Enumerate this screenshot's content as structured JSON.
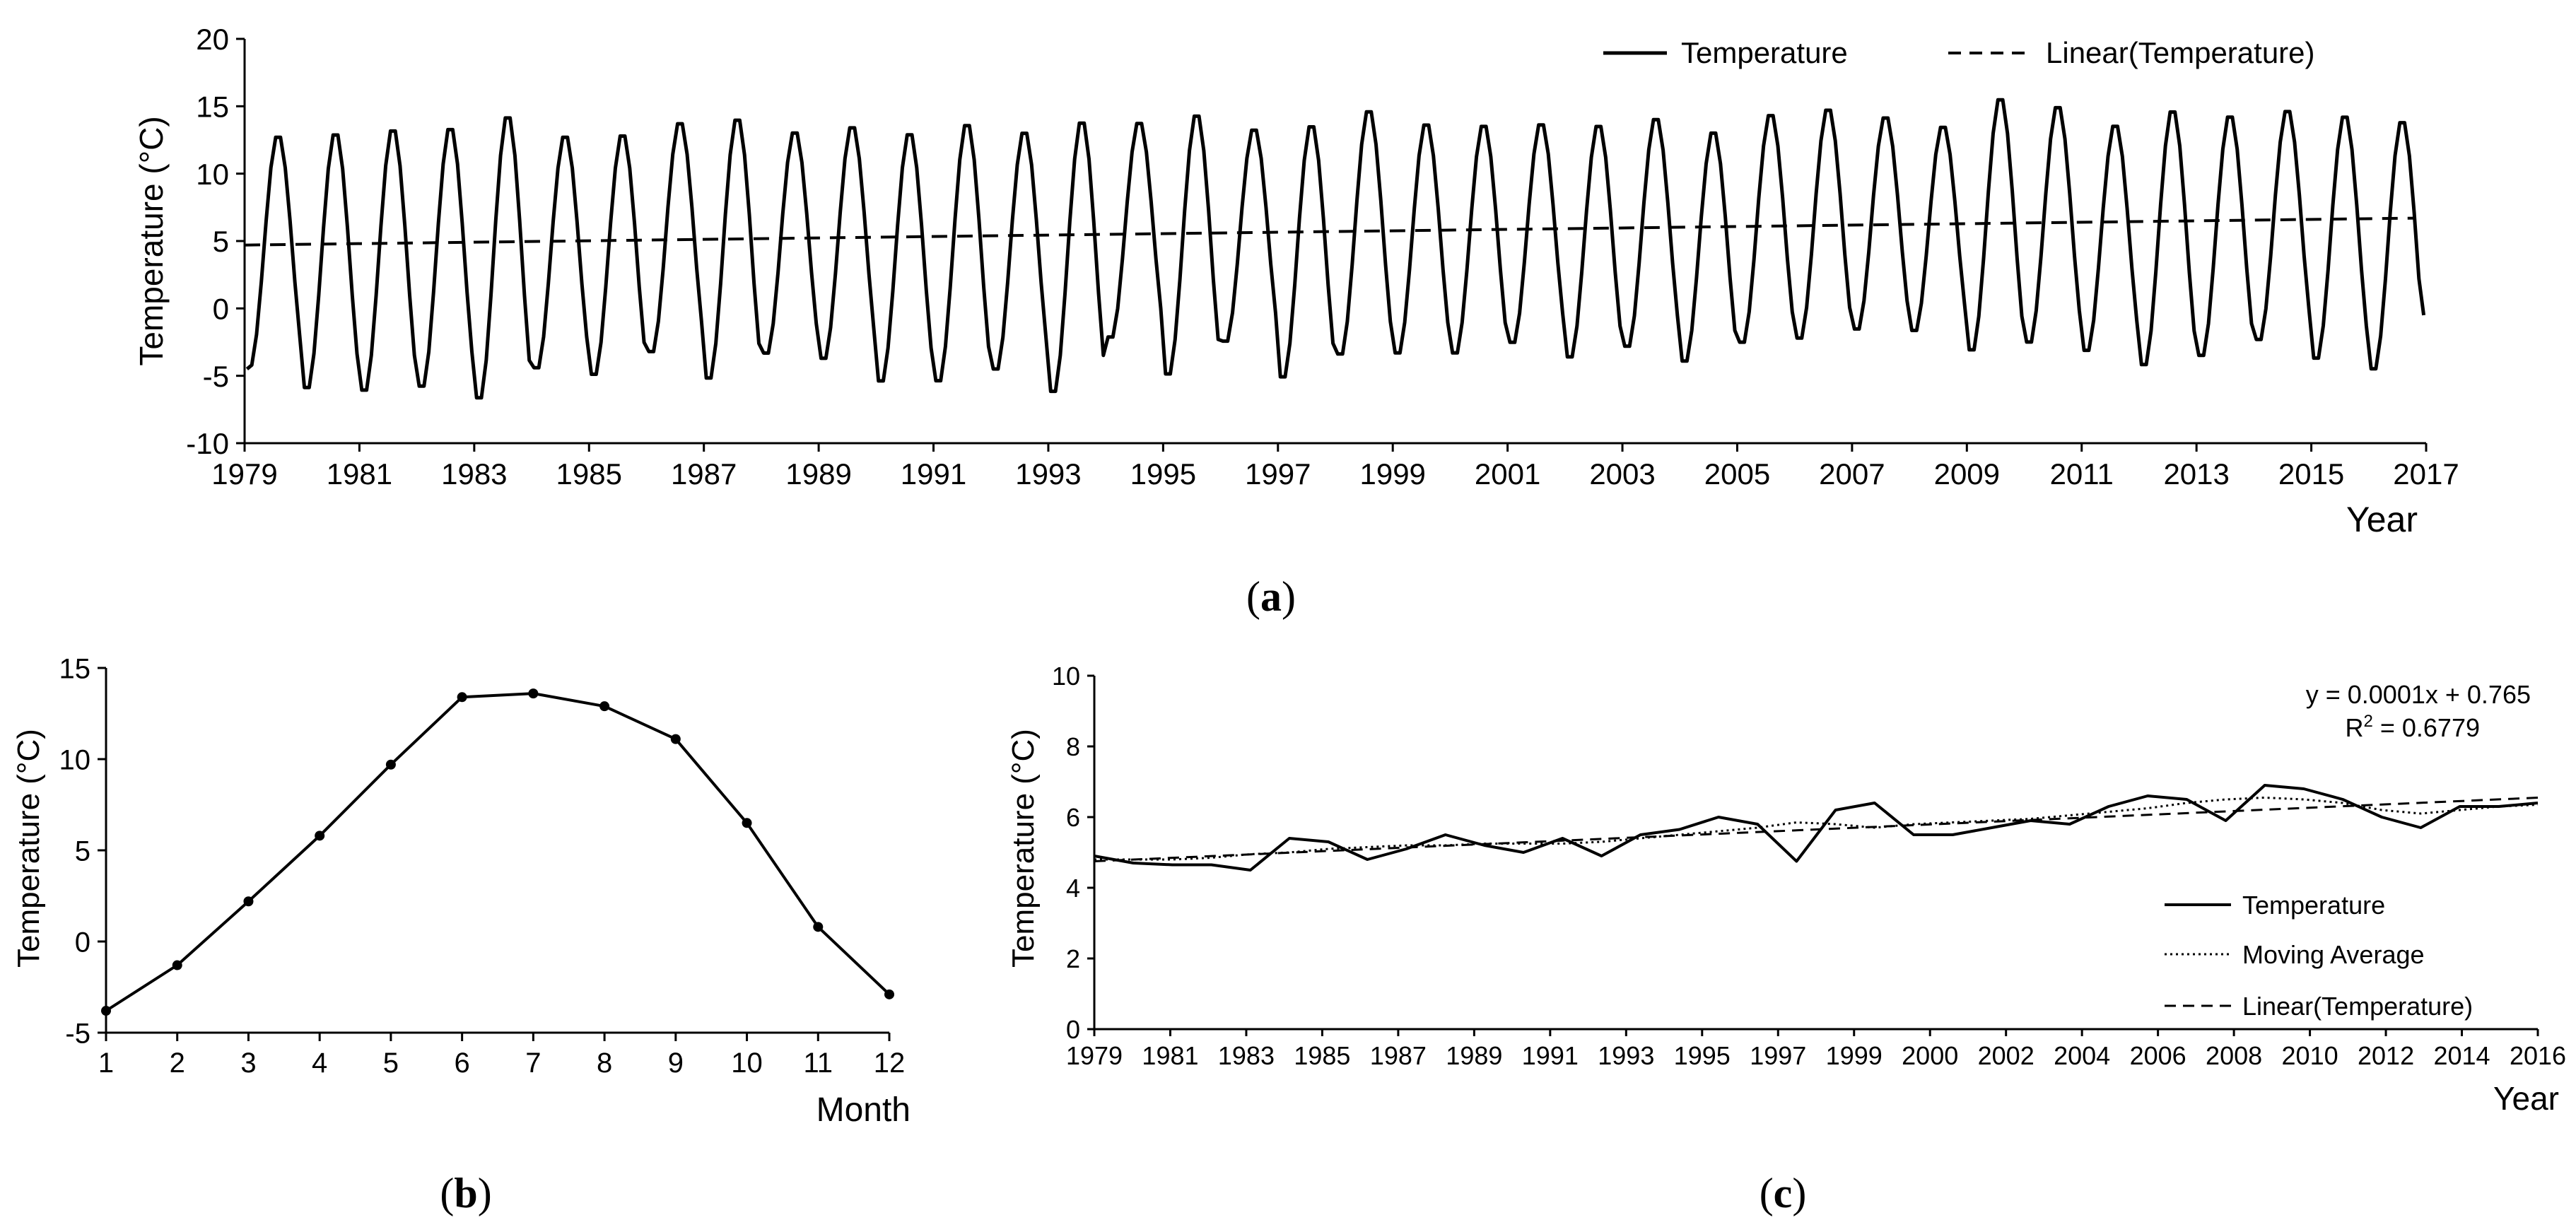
{
  "figure": {
    "panel_labels": {
      "a": {
        "open": "(",
        "letter": "a",
        "close": ")"
      },
      "b": {
        "open": "(",
        "letter": "b",
        "close": ")"
      },
      "c": {
        "open": "(",
        "letter": "c",
        "close": ")"
      }
    }
  },
  "chart_data": [
    {
      "id": "a",
      "type": "line",
      "title": "",
      "xlabel": "Year",
      "ylabel": "Temperature (°C)",
      "xlim": [
        1979,
        2017
      ],
      "ylim": [
        -10,
        20
      ],
      "x_ticks": [
        1979,
        1981,
        1983,
        1985,
        1987,
        1989,
        1991,
        1993,
        1995,
        1997,
        1999,
        2001,
        2003,
        2005,
        2007,
        2009,
        2011,
        2013,
        2015,
        2017
      ],
      "y_ticks": [
        -10,
        -5,
        0,
        5,
        10,
        15,
        20
      ],
      "series": [
        {
          "name": "Temperature",
          "style": "solid",
          "monthly_start": 1979,
          "annual_peaks": [
            13.0,
            13.2,
            13.5,
            13.6,
            14.5,
            13.0,
            13.1,
            14.0,
            14.3,
            13.3,
            13.7,
            13.2,
            13.9,
            13.3,
            14.1,
            14.0,
            14.6,
            13.5,
            13.8,
            14.9,
            13.9,
            13.8,
            13.9,
            13.8,
            14.3,
            13.3,
            14.6,
            15.0,
            14.4,
            13.7,
            15.8,
            15.2,
            13.8,
            14.9,
            14.5,
            14.9,
            14.5,
            14.1
          ],
          "annual_troughs": [
            -4.5,
            -6.2,
            -6.4,
            -6.1,
            -7.0,
            -4.7,
            -5.2,
            -3.5,
            -5.5,
            -3.6,
            -4.0,
            -5.7,
            -5.7,
            -4.8,
            -6.5,
            -2.4,
            -5.2,
            -2.7,
            -5.4,
            -3.7,
            -3.6,
            -3.6,
            -2.8,
            -3.9,
            -3.1,
            -4.2,
            -2.8,
            -2.5,
            -1.8,
            -1.9,
            -3.4,
            -2.8,
            -3.4,
            -4.5,
            -3.8,
            -2.6,
            -4.0,
            -4.8
          ],
          "end_value": -0.5
        },
        {
          "name": "Linear(Temperature)",
          "style": "dashed",
          "x": [
            1979,
            2016.8
          ],
          "y": [
            4.7,
            6.7
          ]
        }
      ],
      "legend": [
        "Temperature",
        "Linear(Temperature)"
      ],
      "legend_position": "top-right"
    },
    {
      "id": "b",
      "type": "line",
      "title": "",
      "xlabel": "Month",
      "ylabel": "Temperature (°C)",
      "xlim": [
        1,
        12
      ],
      "ylim": [
        -5,
        15
      ],
      "x_ticks": [
        1,
        2,
        3,
        4,
        5,
        6,
        7,
        8,
        9,
        10,
        11,
        12
      ],
      "y_ticks": [
        -5,
        0,
        5,
        10,
        15
      ],
      "categories": [
        1,
        2,
        3,
        4,
        5,
        6,
        7,
        8,
        9,
        10,
        11,
        12
      ],
      "values": [
        -3.8,
        -1.3,
        2.2,
        5.8,
        9.7,
        13.4,
        13.6,
        12.9,
        11.1,
        6.5,
        0.8,
        -2.9
      ],
      "markers": true
    },
    {
      "id": "c",
      "type": "line",
      "title": "",
      "xlabel": "Year",
      "ylabel": "Temperature (°C)",
      "xlim": [
        1979,
        2016
      ],
      "ylim": [
        0,
        10
      ],
      "x_ticks": [
        1979,
        1981,
        1983,
        1985,
        1987,
        1989,
        1991,
        1993,
        1995,
        1997,
        1999,
        2000,
        2002,
        2004,
        2006,
        2008,
        2010,
        2012,
        2014,
        2016
      ],
      "y_ticks": [
        0,
        2,
        4,
        6,
        8,
        10
      ],
      "annotation": {
        "equation": "y = 0.0001x + 0.765",
        "r2_prefix": "R",
        "r2_sup": "2",
        "r2_value": " = 0.6779"
      },
      "series": [
        {
          "name": "Temperature",
          "style": "solid",
          "x": [
            1979,
            1980,
            1981,
            1982,
            1983,
            1984,
            1985,
            1986,
            1987,
            1988,
            1989,
            1990,
            1991,
            1992,
            1993,
            1994,
            1995,
            1996,
            1997,
            1998,
            1999,
            2000,
            2001,
            2002,
            2003,
            2004,
            2005,
            2006,
            2007,
            2008,
            2009,
            2010,
            2011,
            2012,
            2013,
            2014,
            2015,
            2016
          ],
          "y": [
            4.9,
            4.7,
            4.65,
            4.65,
            4.5,
            5.4,
            5.3,
            4.8,
            5.1,
            5.5,
            5.2,
            5.0,
            5.4,
            4.9,
            5.5,
            5.65,
            6.0,
            5.8,
            4.75,
            6.2,
            6.4,
            5.5,
            5.5,
            5.7,
            5.9,
            5.8,
            6.3,
            6.6,
            6.5,
            5.9,
            6.9,
            6.8,
            6.5,
            6.0,
            5.7,
            6.3,
            6.3,
            6.4
          ]
        },
        {
          "name": "Moving Average",
          "style": "dotted",
          "x": [
            1979,
            1980,
            1981,
            1982,
            1983,
            1984,
            1985,
            1986,
            1987,
            1988,
            1989,
            1990,
            1991,
            1992,
            1993,
            1994,
            1995,
            1996,
            1997,
            1998,
            1999,
            2000,
            2001,
            2002,
            2003,
            2004,
            2005,
            2006,
            2007,
            2008,
            2009,
            2010,
            2011,
            2012,
            2013,
            2014,
            2015,
            2016
          ],
          "y": [
            4.8,
            4.8,
            4.8,
            4.85,
            4.95,
            5.0,
            5.1,
            5.15,
            5.2,
            5.2,
            5.25,
            5.25,
            5.25,
            5.3,
            5.4,
            5.5,
            5.6,
            5.7,
            5.85,
            5.8,
            5.7,
            5.8,
            5.85,
            5.9,
            5.95,
            6.05,
            6.15,
            6.25,
            6.4,
            6.5,
            6.55,
            6.5,
            6.4,
            6.2,
            6.1,
            6.2,
            6.3,
            6.35
          ]
        },
        {
          "name": "Linear(Temperature)",
          "style": "dashed",
          "x": [
            1979,
            2016
          ],
          "y": [
            4.75,
            6.55
          ]
        }
      ],
      "legend": [
        "Temperature",
        "Moving Average",
        "Linear(Temperature)"
      ],
      "legend_position": "bottom-right"
    }
  ]
}
